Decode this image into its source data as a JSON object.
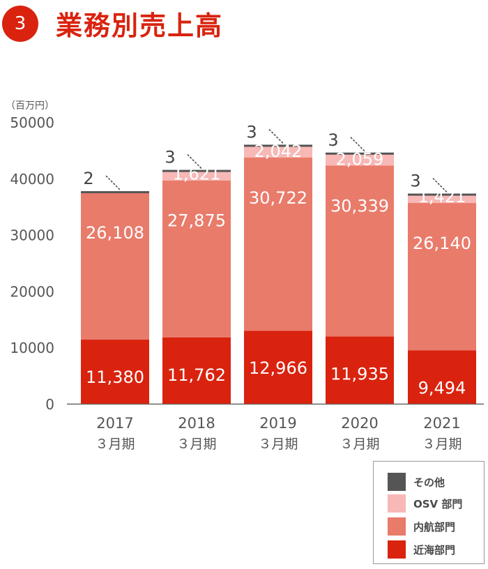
{
  "header": {
    "number": "3",
    "title": "業務別売上高"
  },
  "colors": {
    "brand": "#d9230f",
    "近海部門": "#d9230f",
    "内航部門": "#e97b6b",
    "OSV 部門": "#f7b8b6",
    "その他": "#555555",
    "axis_text": "#555555"
  },
  "chart_data": {
    "type": "bar",
    "stacked": true,
    "unit_label": "（百万円）",
    "ylim": [
      0,
      50000
    ],
    "yticks": [
      "0",
      "10000",
      "20000",
      "30000",
      "40000",
      "50000"
    ],
    "categories": [
      "2017\n３月期",
      "2018\n３月期",
      "2019\n３月期",
      "2020\n３月期",
      "2021\n３月期"
    ],
    "category_years": [
      "2017",
      "2018",
      "2019",
      "2020",
      "2021"
    ],
    "category_period": "３月期",
    "series": [
      {
        "name": "近海部門",
        "values": [
          11380,
          11762,
          12966,
          11935,
          9494
        ],
        "labels": [
          "11,380",
          "11,762",
          "12,966",
          "11,935",
          "9,494"
        ]
      },
      {
        "name": "内航部門",
        "values": [
          26108,
          27875,
          30722,
          30339,
          26140
        ],
        "labels": [
          "26,108",
          "27,875",
          "30,722",
          "30,339",
          "26,140"
        ]
      },
      {
        "name": "OSV 部門",
        "values": [
          0,
          1621,
          2042,
          2059,
          1421
        ],
        "labels": [
          "",
          "1,621",
          "2,042",
          "2,059",
          "1,421"
        ]
      },
      {
        "name": "その他",
        "values": [
          2,
          3,
          3,
          3,
          3
        ],
        "labels": [
          "2",
          "3",
          "3",
          "3",
          "3"
        ]
      }
    ],
    "legend": {
      "position": "bottom-right",
      "entries": [
        "その他",
        "OSV 部門",
        "内航部門",
        "近海部門"
      ]
    },
    "grid": false
  }
}
